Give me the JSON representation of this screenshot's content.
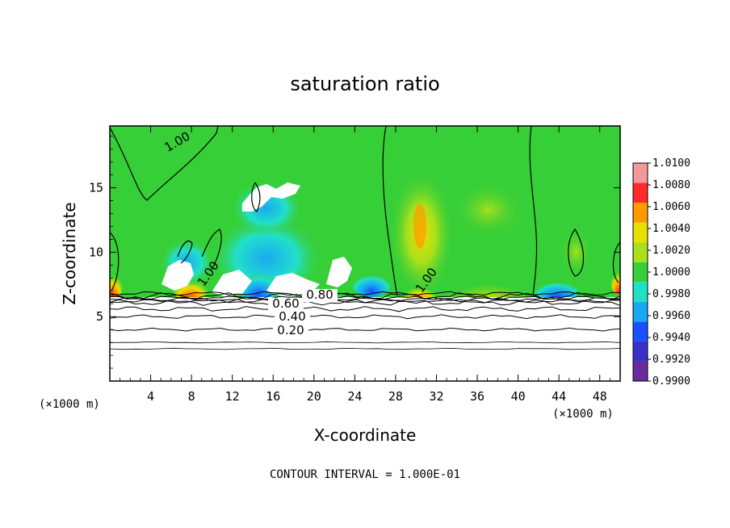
{
  "chart_data": {
    "type": "heatmap",
    "title": "saturation ratio",
    "xlabel": "X-coordinate",
    "ylabel": "Z-coordinate",
    "x_unit_left": "(×1000 m)",
    "x_unit_right": "(×1000 m)",
    "xlim": [
      0,
      50
    ],
    "ylim": [
      0,
      19.8
    ],
    "x_ticks": [
      "4",
      "8",
      "12",
      "16",
      "20",
      "24",
      "28",
      "32",
      "36",
      "40",
      "44",
      "48"
    ],
    "y_ticks": [
      "5",
      "10",
      "15"
    ],
    "colorbar_labels": [
      "0.9900",
      "0.9920",
      "0.9940",
      "0.9960",
      "0.9980",
      "1.0000",
      "1.0020",
      "1.0040",
      "1.0060",
      "1.0080",
      "1.0100"
    ],
    "colorbar_colors": [
      "#6a2aa0",
      "#3a30c8",
      "#1a50ff",
      "#19a9f2",
      "#22e0c8",
      "#37cf37",
      "#a8e01c",
      "#e8e000",
      "#ff9a00",
      "#ff2a2a",
      "#f29a9a"
    ],
    "contour_interval_text": "CONTOUR INTERVAL = 1.000E-01",
    "contour_labels": [
      "1.00",
      "1.00",
      "1.00",
      "0.80",
      "0.60",
      "0.40",
      "0.20"
    ],
    "boundary_layer_contours": [
      {
        "value": 0.2,
        "z": 4.0
      },
      {
        "value": 0.4,
        "z": 5.0
      },
      {
        "value": 0.6,
        "z": 5.6
      },
      {
        "value": 0.8,
        "z": 6.1
      },
      {
        "value": 1.0,
        "z": 6.6
      }
    ],
    "extra_contour_z": [
      2.5,
      3.0
    ]
  }
}
